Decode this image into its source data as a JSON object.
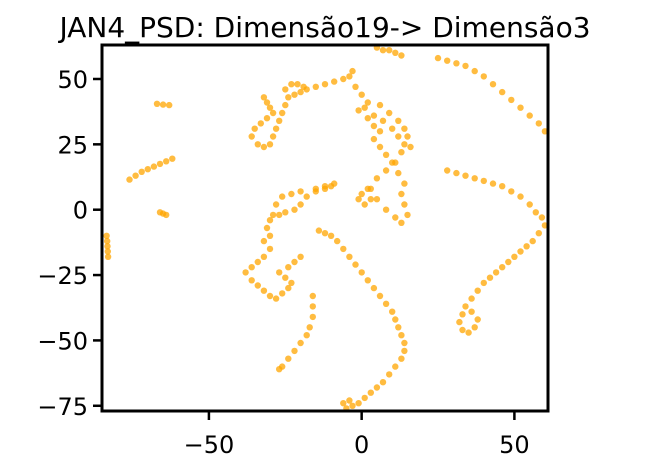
{
  "chart_data": {
    "type": "scatter",
    "title": "JAN4_PSD: Dimensão19-> Dimensão3",
    "xlabel": "",
    "ylabel": "",
    "xlim": [
      -85,
      61
    ],
    "ylim": [
      -77,
      63
    ],
    "xticks": [
      -50,
      0,
      50
    ],
    "xtick_labels": [
      "−50",
      "0",
      "50"
    ],
    "yticks": [
      50,
      25,
      0,
      -25,
      -50,
      -75
    ],
    "ytick_labels": [
      "50",
      "25",
      "0",
      "−25",
      "−50",
      "−75"
    ],
    "grid": false,
    "marker_color": "#ffa500",
    "series": [
      {
        "points": [
          [
            -83.5,
            -10
          ],
          [
            -83.3,
            -12
          ],
          [
            -83.2,
            -14
          ],
          [
            -83.1,
            -16
          ],
          [
            -83,
            -18
          ],
          [
            -67,
            40.5
          ],
          [
            -65,
            40.2
          ],
          [
            -63,
            40
          ],
          [
            -76,
            11.5
          ],
          [
            -74,
            13
          ],
          [
            -72,
            14.5
          ],
          [
            -70,
            15.5
          ],
          [
            -68,
            16.5
          ],
          [
            -66,
            17.5
          ],
          [
            -64,
            18.5
          ],
          [
            -62,
            19.5
          ],
          [
            -66,
            -1
          ],
          [
            -65,
            -1.5
          ],
          [
            -64,
            -2
          ],
          [
            -32,
            43
          ],
          [
            -31,
            41
          ],
          [
            -30,
            39
          ],
          [
            -29,
            37
          ],
          [
            -31,
            35
          ],
          [
            -33,
            33
          ],
          [
            -35,
            31
          ],
          [
            -36,
            28
          ],
          [
            -34,
            25
          ],
          [
            -32,
            24
          ],
          [
            -30,
            25
          ],
          [
            -29,
            28
          ],
          [
            -28,
            31
          ],
          [
            -27,
            34
          ],
          [
            -26,
            37
          ],
          [
            -25,
            40
          ],
          [
            -24,
            43
          ],
          [
            -22,
            44
          ],
          [
            -20,
            45
          ],
          [
            -19,
            47
          ],
          [
            -21,
            48
          ],
          [
            -23,
            48
          ],
          [
            -25,
            46
          ],
          [
            -18,
            46
          ],
          [
            -15,
            47
          ],
          [
            -12,
            48
          ],
          [
            -9,
            49
          ],
          [
            -6,
            50
          ],
          [
            -4,
            51
          ],
          [
            -3,
            53
          ],
          [
            -2,
            47
          ],
          [
            0,
            44
          ],
          [
            2,
            41
          ],
          [
            -1,
            38
          ],
          [
            2,
            35
          ],
          [
            4,
            32
          ],
          [
            6,
            30
          ],
          [
            4,
            27
          ],
          [
            6,
            24
          ],
          [
            8,
            21
          ],
          [
            10,
            18
          ],
          [
            8,
            15
          ],
          [
            5,
            12
          ],
          [
            3,
            8
          ],
          [
            5,
            4
          ],
          [
            8,
            0
          ],
          [
            11,
            -3
          ],
          [
            13,
            -5
          ],
          [
            15,
            -2
          ],
          [
            14,
            2
          ],
          [
            13,
            6
          ],
          [
            14,
            10
          ],
          [
            12,
            14
          ],
          [
            11,
            18
          ],
          [
            13,
            22
          ],
          [
            14,
            25
          ],
          [
            12,
            28
          ],
          [
            10,
            31
          ],
          [
            7,
            34
          ],
          [
            4,
            36
          ],
          [
            1,
            39
          ],
          [
            6,
            40
          ],
          [
            9,
            37
          ],
          [
            12,
            34
          ],
          [
            14,
            31
          ],
          [
            15,
            28
          ],
          [
            16,
            24
          ],
          [
            2,
            8
          ],
          [
            0,
            6
          ],
          [
            -1,
            4
          ],
          [
            1,
            2
          ],
          [
            3,
            4
          ],
          [
            5,
            62
          ],
          [
            7,
            61
          ],
          [
            9,
            61
          ],
          [
            11,
            60
          ],
          [
            13,
            59
          ],
          [
            25,
            58
          ],
          [
            28,
            57
          ],
          [
            31,
            56
          ],
          [
            34,
            55
          ],
          [
            37,
            53
          ],
          [
            40,
            51
          ],
          [
            43,
            48
          ],
          [
            46,
            45
          ],
          [
            49,
            42
          ],
          [
            52,
            39
          ],
          [
            55,
            36
          ],
          [
            58,
            33
          ],
          [
            60,
            30
          ],
          [
            28,
            15
          ],
          [
            31,
            14
          ],
          [
            34,
            13
          ],
          [
            37,
            12
          ],
          [
            40,
            11
          ],
          [
            43,
            10
          ],
          [
            46,
            9
          ],
          [
            49,
            7
          ],
          [
            52,
            5
          ],
          [
            55,
            2
          ],
          [
            57,
            -1
          ],
          [
            59,
            -3
          ],
          [
            60,
            -6
          ],
          [
            58,
            -9
          ],
          [
            56,
            -12
          ],
          [
            54,
            -14
          ],
          [
            52,
            -16
          ],
          [
            50,
            -18
          ],
          [
            48,
            -20
          ],
          [
            46,
            -22
          ],
          [
            44,
            -24
          ],
          [
            42,
            -26
          ],
          [
            40,
            -28
          ],
          [
            38,
            -31
          ],
          [
            36,
            -34
          ],
          [
            34,
            -37
          ],
          [
            33,
            -40
          ],
          [
            32,
            -43
          ],
          [
            33,
            -46
          ],
          [
            35,
            -47
          ],
          [
            37,
            -45
          ],
          [
            38,
            -42
          ],
          [
            36,
            -39
          ],
          [
            -27,
            -24
          ],
          [
            -25,
            -26
          ],
          [
            -23,
            -28
          ],
          [
            -24,
            -30
          ],
          [
            -26,
            -32
          ],
          [
            -28,
            -34
          ],
          [
            -30,
            -33
          ],
          [
            -32,
            -31
          ],
          [
            -34,
            -29
          ],
          [
            -36,
            -27
          ],
          [
            -38,
            -24
          ],
          [
            -36,
            -22
          ],
          [
            -34,
            -20
          ],
          [
            -32,
            -18
          ],
          [
            -30,
            -15
          ],
          [
            -32,
            -12
          ],
          [
            -30,
            -10
          ],
          [
            -31,
            -7
          ],
          [
            -30,
            -4
          ],
          [
            -27,
            -2
          ],
          [
            -25,
            -1
          ],
          [
            -22,
            0
          ],
          [
            -20,
            2
          ],
          [
            -18,
            5
          ],
          [
            -15,
            7
          ],
          [
            -12,
            8
          ],
          [
            -10,
            9
          ],
          [
            -9,
            10
          ],
          [
            -12,
            9
          ],
          [
            -15,
            8
          ],
          [
            -20,
            7
          ],
          [
            -23,
            6
          ],
          [
            -26,
            5
          ],
          [
            -28,
            2
          ],
          [
            -29,
            -2
          ],
          [
            -20,
            -18
          ],
          [
            -22,
            -20
          ],
          [
            -24,
            -22
          ],
          [
            -14,
            -8
          ],
          [
            -12,
            -9
          ],
          [
            -10,
            -10
          ],
          [
            -8,
            -12
          ],
          [
            -6,
            -15
          ],
          [
            -4,
            -18
          ],
          [
            -2,
            -21
          ],
          [
            0,
            -24
          ],
          [
            2,
            -27
          ],
          [
            4,
            -30
          ],
          [
            6,
            -33
          ],
          [
            8,
            -36
          ],
          [
            10,
            -39
          ],
          [
            11,
            -42
          ],
          [
            12,
            -45
          ],
          [
            13,
            -48
          ],
          [
            14,
            -51
          ],
          [
            14,
            -54
          ],
          [
            13,
            -57
          ],
          [
            11,
            -60
          ],
          [
            9,
            -63
          ],
          [
            7,
            -66
          ],
          [
            5,
            -68
          ],
          [
            3,
            -70
          ],
          [
            1,
            -72
          ],
          [
            -1,
            -74
          ],
          [
            -3,
            -75
          ],
          [
            -5,
            -76
          ],
          [
            -6,
            -74
          ],
          [
            -4,
            -73
          ],
          [
            -16,
            -33
          ],
          [
            -16,
            -37
          ],
          [
            -16,
            -41
          ],
          [
            -17,
            -45
          ],
          [
            -18,
            -48
          ],
          [
            -20,
            -51
          ],
          [
            -22,
            -54
          ],
          [
            -24,
            -57
          ],
          [
            -26,
            -60
          ],
          [
            -27,
            -61
          ]
        ]
      }
    ]
  }
}
